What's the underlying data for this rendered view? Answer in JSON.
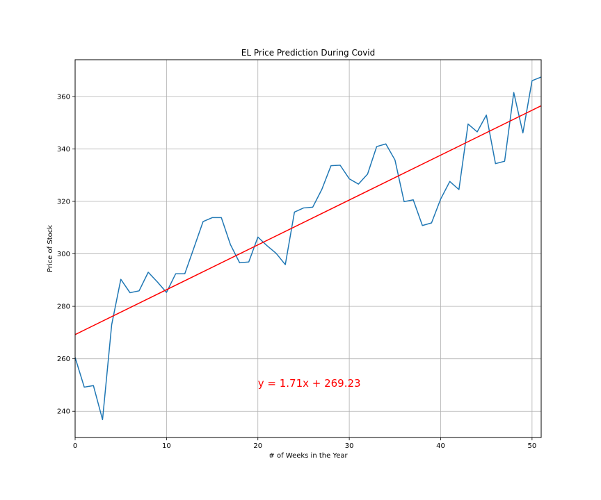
{
  "chart_data": {
    "type": "line",
    "title": "EL Price Prediction During Covid",
    "xlabel": "# of Weeks in the Year",
    "ylabel": "Price of Stock",
    "xlim": [
      0,
      51
    ],
    "ylim": [
      230,
      374
    ],
    "xticks": [
      0,
      10,
      20,
      30,
      40,
      50
    ],
    "yticks": [
      240,
      260,
      280,
      300,
      320,
      340,
      360
    ],
    "grid": true,
    "series": [
      {
        "color": "#1f77b4",
        "x": [
          0,
          1,
          2,
          3,
          4,
          5,
          6,
          7,
          8,
          9,
          10,
          11,
          12,
          13,
          14,
          15,
          16,
          17,
          18,
          19,
          20,
          21,
          22,
          23,
          24,
          25,
          26,
          27,
          28,
          29,
          30,
          31,
          32,
          33,
          34,
          35,
          36,
          37,
          38,
          39,
          40,
          41,
          42,
          43,
          44,
          45,
          46,
          47,
          48,
          49,
          50,
          51
        ],
        "y": [
          260.5,
          249.2,
          249.8,
          236.8,
          273,
          290.3,
          285.2,
          285.9,
          293,
          289.3,
          285.3,
          292.4,
          292.4,
          302.3,
          312.3,
          313.8,
          313.8,
          303.5,
          296.6,
          296.9,
          306.4,
          303.1,
          300.2,
          295.9,
          315.9,
          317.5,
          317.8,
          324.6,
          333.6,
          333.8,
          328.6,
          326.6,
          330.4,
          340.9,
          341.9,
          335.8,
          319.9,
          320.6,
          310.8,
          311.8,
          320.9,
          327.6,
          324.5,
          349.5,
          346.5,
          352.9,
          334.4,
          335.3,
          361.5,
          346.1,
          366,
          367.4
        ]
      },
      {
        "color": "#ff0000",
        "x": [
          0,
          51
        ],
        "y": [
          269.23,
          356.44
        ]
      }
    ],
    "annotation": {
      "text": "y = 1.71x + 269.23",
      "x": 20,
      "y": 249.3,
      "color": "#ff0000"
    }
  }
}
